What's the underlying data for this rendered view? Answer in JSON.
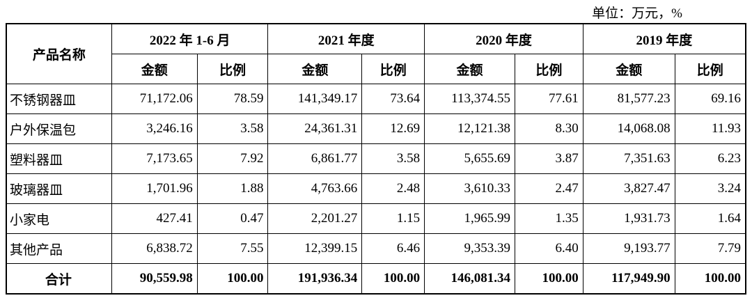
{
  "unit": "单位：万元，%",
  "table": {
    "corner": "产品名称",
    "periods": [
      {
        "label": "2022 年 1-6 月",
        "columns": [
          "金额",
          "比例"
        ]
      },
      {
        "label": "2021 年度",
        "columns": [
          "金额",
          "比例"
        ]
      },
      {
        "label": "2020 年度",
        "columns": [
          "金额",
          "比例"
        ]
      },
      {
        "label": "2019 年度",
        "columns": [
          "金额",
          "比例"
        ]
      }
    ],
    "rows": [
      [
        "不锈钢器皿",
        "71,172.06",
        "78.59",
        "141,349.17",
        "73.64",
        "113,374.55",
        "77.61",
        "81,577.23",
        "69.16"
      ],
      [
        "户外保温包",
        "3,246.16",
        "3.58",
        "24,361.31",
        "12.69",
        "12,121.38",
        "8.30",
        "14,068.08",
        "11.93"
      ],
      [
        "塑料器皿",
        "7,173.65",
        "7.92",
        "6,861.77",
        "3.58",
        "5,655.69",
        "3.87",
        "7,351.63",
        "6.23"
      ],
      [
        "玻璃器皿",
        "1,701.96",
        "1.88",
        "4,763.66",
        "2.48",
        "3,610.33",
        "2.47",
        "3,827.47",
        "3.24"
      ],
      [
        "小家电",
        "427.41",
        "0.47",
        "2,201.27",
        "1.15",
        "1,965.99",
        "1.35",
        "1,931.73",
        "1.64"
      ],
      [
        "其他产品",
        "6,838.72",
        "7.55",
        "12,399.15",
        "6.46",
        "9,353.39",
        "6.40",
        "9,193.77",
        "7.79"
      ]
    ],
    "total": [
      "合计",
      "90,559.98",
      "100.00",
      "191,936.34",
      "100.00",
      "146,081.34",
      "100.00",
      "117,949.90",
      "100.00"
    ]
  }
}
